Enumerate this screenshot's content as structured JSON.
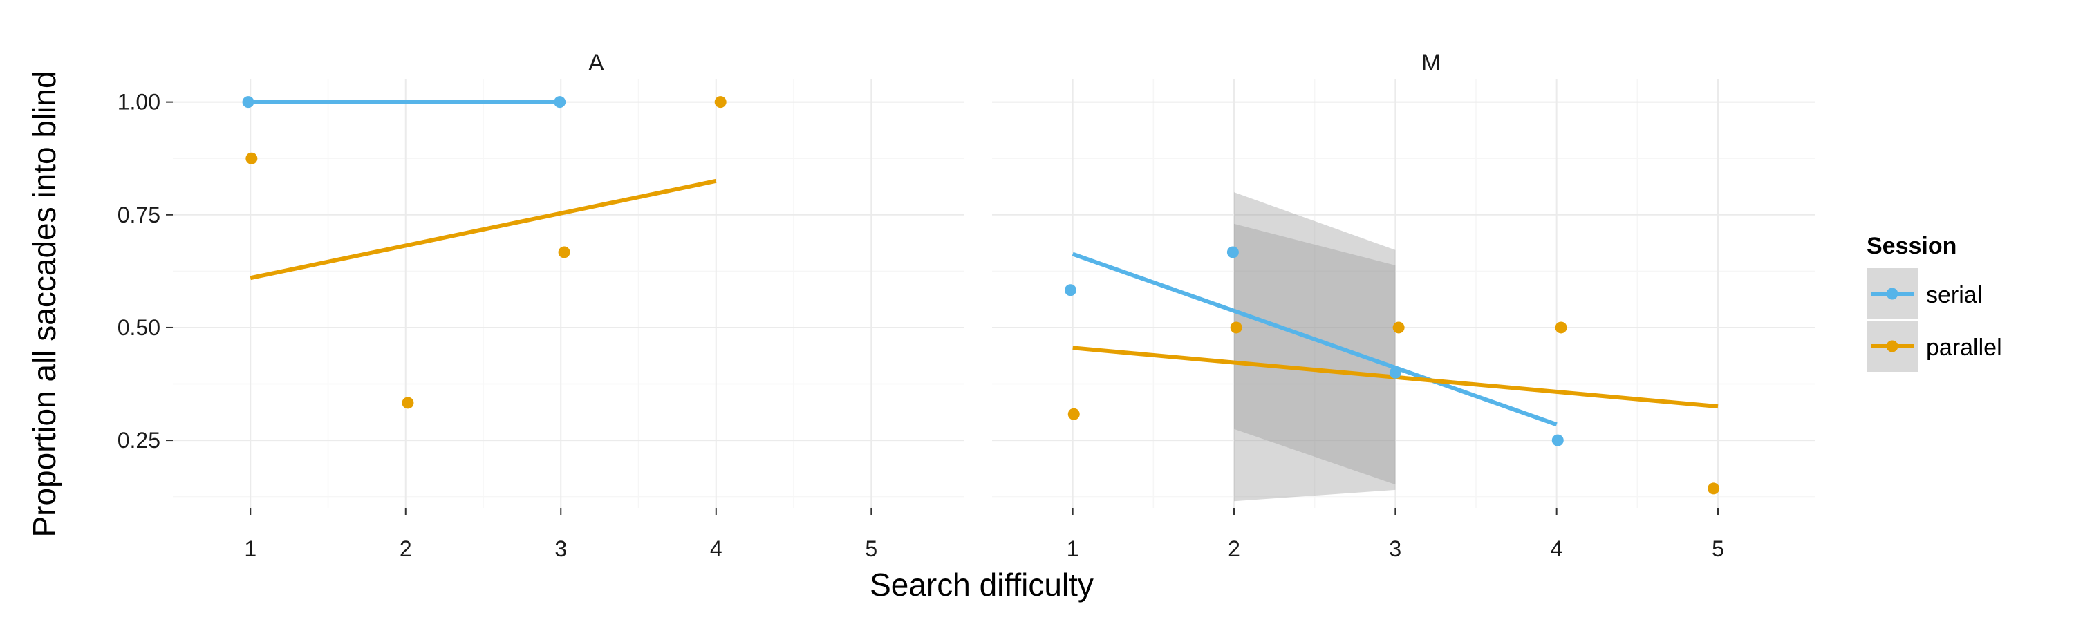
{
  "chart_data": {
    "type": "scatter",
    "xlabel": "Search difficulty",
    "ylabel": "Proportion all saccades into blind",
    "xlim": [
      0.5,
      5.6
    ],
    "ylim": [
      0.1,
      1.05
    ],
    "x_ticks": [
      "1",
      "2",
      "3",
      "4",
      "5"
    ],
    "y_ticks": [
      "0.25",
      "0.50",
      "0.75",
      "1.00"
    ],
    "grid": true,
    "legend": {
      "title": "Session",
      "position": "right",
      "items": [
        {
          "label": "serial",
          "color": "#56B4E9"
        },
        {
          "label": "parallel",
          "color": "#E69F00"
        }
      ]
    },
    "colors": {
      "serial": "#56B4E9",
      "parallel": "#E69F00",
      "ribbon": "#999999"
    },
    "panels": [
      {
        "title": "A",
        "series": [
          {
            "name": "serial",
            "points": [
              [
                1,
                1.0
              ],
              [
                3,
                1.0
              ]
            ],
            "fit": [
              [
                1,
                1.0
              ],
              [
                3,
                1.0
              ]
            ]
          },
          {
            "name": "parallel",
            "points": [
              [
                1,
                0.875
              ],
              [
                2,
                0.333
              ],
              [
                3,
                0.667
              ],
              [
                4,
                1.0
              ]
            ],
            "fit": [
              [
                1,
                0.61
              ],
              [
                4,
                0.825
              ]
            ]
          }
        ],
        "ribbons": []
      },
      {
        "title": "M",
        "series": [
          {
            "name": "serial",
            "points": [
              [
                1,
                0.583
              ],
              [
                2,
                0.667
              ],
              [
                3,
                0.4
              ],
              [
                4,
                0.25
              ]
            ],
            "fit": [
              [
                1,
                0.663
              ],
              [
                4,
                0.285
              ]
            ]
          },
          {
            "name": "parallel",
            "points": [
              [
                1,
                0.308
              ],
              [
                2,
                0.5
              ],
              [
                3,
                0.5
              ],
              [
                4,
                0.5
              ],
              [
                5,
                0.143
              ]
            ],
            "fit": [
              [
                1,
                0.455
              ],
              [
                5,
                0.325
              ]
            ]
          }
        ],
        "ribbons": [
          {
            "x": [
              2,
              3
            ],
            "upper": [
              0.8,
              0.672
            ],
            "lower": [
              0.115,
              0.14
            ]
          },
          {
            "x": [
              2,
              3
            ],
            "upper": [
              0.73,
              0.638
            ],
            "lower": [
              0.275,
              0.152
            ]
          }
        ]
      }
    ]
  }
}
